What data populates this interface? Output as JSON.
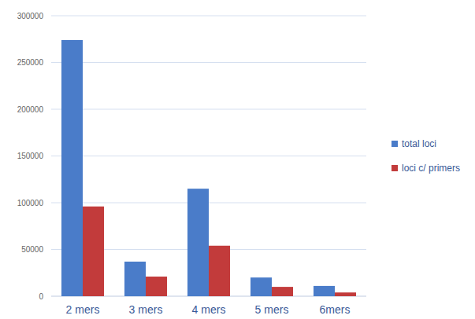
{
  "chart_data": {
    "type": "bar",
    "categories": [
      "2 mers",
      "3 mers",
      "4 mers",
      "5 mers",
      "6mers"
    ],
    "series": [
      {
        "name": "total loci",
        "color": "#4a7cc9",
        "values": [
          274000,
          37000,
          115000,
          20000,
          11000
        ]
      },
      {
        "name": "loci c/ primers",
        "color": "#c23b3b",
        "values": [
          96000,
          21000,
          54000,
          10000,
          4000
        ]
      }
    ],
    "ylim": [
      0,
      300000
    ],
    "yticks": [
      0,
      50000,
      100000,
      150000,
      200000,
      250000,
      300000
    ],
    "grid": true,
    "legend": "right"
  }
}
